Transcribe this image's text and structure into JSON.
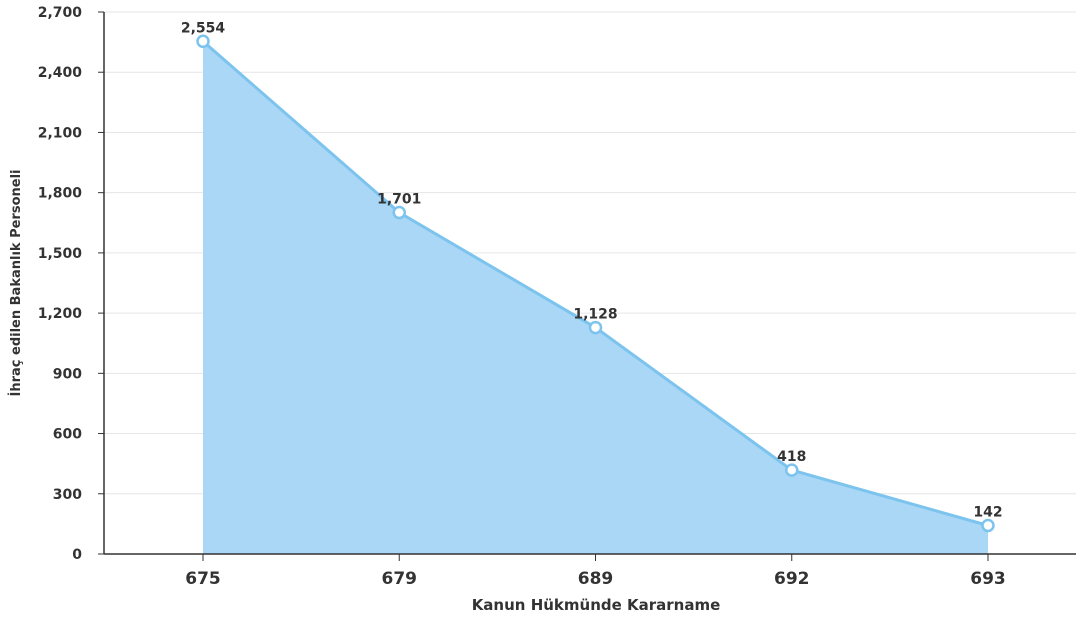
{
  "chart_data": {
    "type": "area",
    "title": "",
    "xlabel": "Kanun Hükmünde Kararname",
    "ylabel": "İhraç edilen Bakanlık Personeli",
    "categories": [
      "675",
      "679",
      "689",
      "692",
      "693"
    ],
    "values": [
      2554,
      1701,
      1128,
      418,
      142
    ],
    "data_labels": [
      "2,554",
      "1,701",
      "1,128",
      "418",
      "142"
    ],
    "ylim": [
      0,
      2700
    ],
    "yticks": [
      0,
      300,
      600,
      900,
      1200,
      1500,
      1800,
      2100,
      2400,
      2700
    ],
    "ytick_labels": [
      "0",
      "300",
      "600",
      "900",
      "1,200",
      "1,500",
      "1,800",
      "2,100",
      "2,400",
      "2,700"
    ],
    "grid": true,
    "legend": "none",
    "colors": {
      "fill": "#a9d7f5",
      "line": "#7cc4ee",
      "marker_fill": "#ffffff",
      "grid": "#e6e6e6",
      "axis": "#333333"
    }
  }
}
